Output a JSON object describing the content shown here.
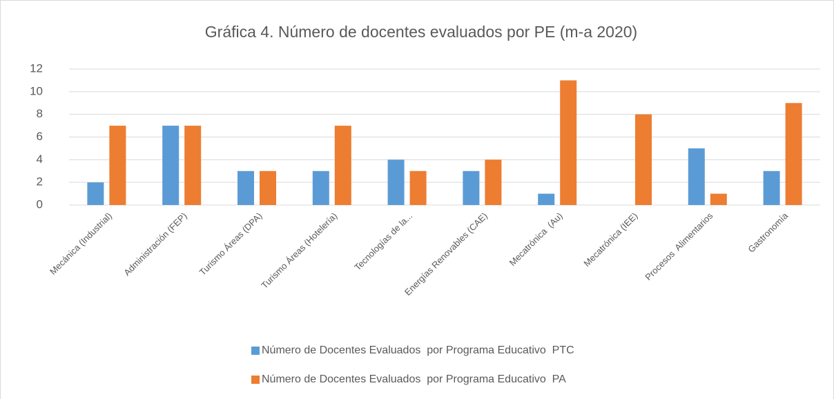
{
  "chart_data": {
    "type": "bar",
    "title": "Gráfica 4. Número de docentes evaluados por PE (m-a 2020)",
    "categories": [
      "Mecánica (Industrial)",
      "Administración (FEP)",
      "Turismo Áreas (DPA)",
      "Turismo Áreas (Hotelería)",
      "Tecnologías de la...",
      "Energías Renovables (CAE)",
      "Mecatrónica  (Au)",
      "Mecatrónica (IEE)",
      "Procesos  Alimentarios",
      "Gastronomía"
    ],
    "series": [
      {
        "name": "Número de Docentes Evaluados  por Programa Educativo  PTC",
        "color": "#5b9bd5",
        "values": [
          2,
          7,
          3,
          3,
          4,
          3,
          1,
          0,
          5,
          3
        ]
      },
      {
        "name": "Número de Docentes Evaluados  por Programa Educativo  PA",
        "color": "#ed7d31",
        "values": [
          7,
          7,
          3,
          7,
          3,
          4,
          11,
          8,
          1,
          9
        ]
      }
    ],
    "ylim": [
      0,
      12
    ],
    "yticks": [
      0,
      2,
      4,
      6,
      8,
      10,
      12
    ],
    "grid": true,
    "legend": "bottom"
  }
}
